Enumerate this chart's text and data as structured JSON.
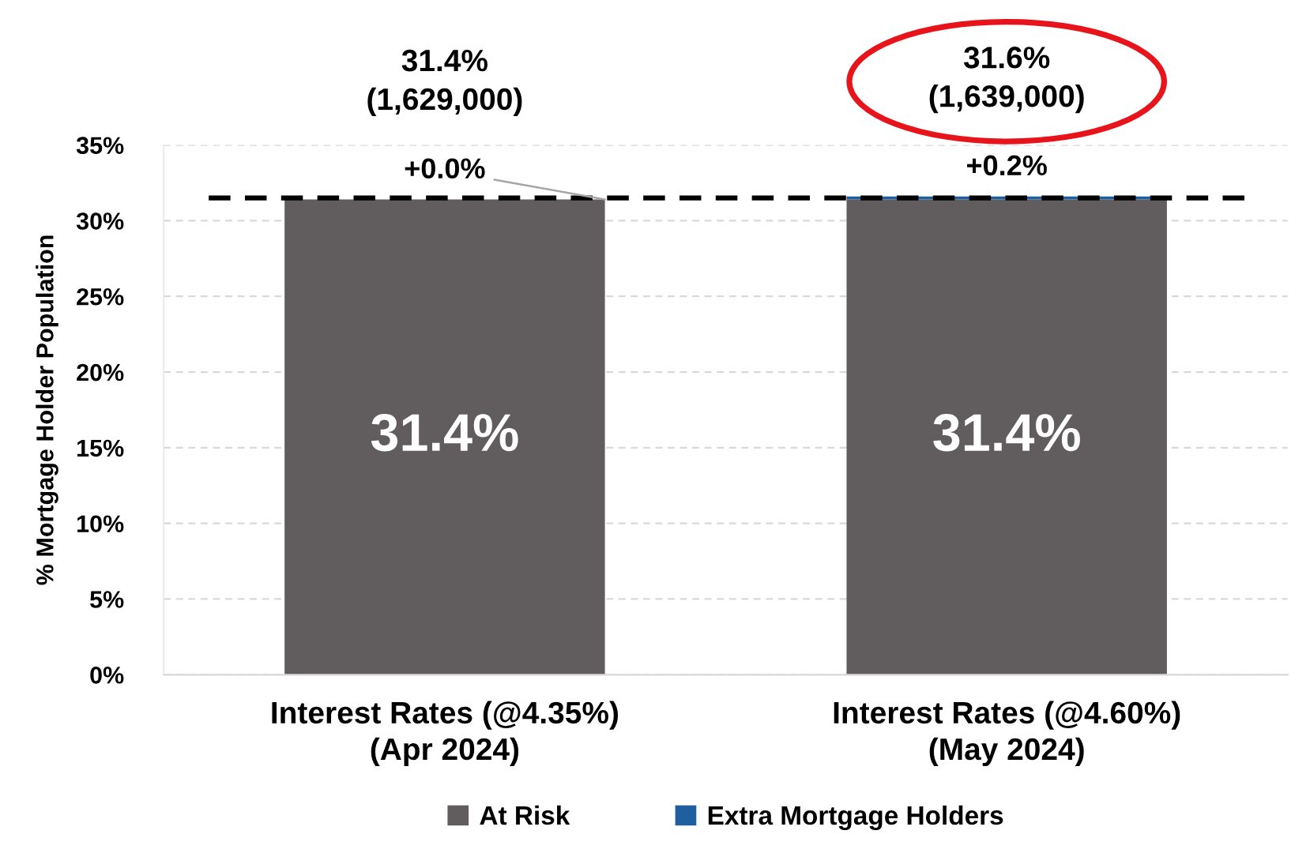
{
  "chart_data": {
    "type": "bar",
    "stacked": true,
    "ylabel": "% Mortgage Holder Population",
    "categories": [
      "Interest Rates (@4.35%)\n(Apr 2024)",
      "Interest Rates (@4.60%)\n(May 2024)"
    ],
    "series": [
      {
        "name": "At Risk",
        "color": "#615d5e",
        "values": [
          31.4,
          31.4
        ],
        "value_labels": [
          "31.4%",
          "31.4%"
        ]
      },
      {
        "name": "Extra Mortgage Holders",
        "color": "#1f5fa0",
        "values": [
          0.0,
          0.2
        ],
        "value_labels": [
          "+0.0%",
          "+0.2%"
        ]
      }
    ],
    "totals": [
      "31.4%\n(1,629,000)",
      "31.6%\n(1,639,000)"
    ],
    "ref_lines": [
      {
        "axis": "y",
        "value": 31.5,
        "color": "#000000",
        "line_style": "dashed"
      }
    ],
    "ylim": [
      0,
      35
    ],
    "yticks": [
      {
        "value": 0,
        "label": "0%"
      },
      {
        "value": 5,
        "label": "5%"
      },
      {
        "value": 10,
        "label": "10%"
      },
      {
        "value": 15,
        "label": "15%"
      },
      {
        "value": 20,
        "label": "20%"
      },
      {
        "value": 25,
        "label": "25%"
      },
      {
        "value": 30,
        "label": "30%"
      },
      {
        "value": 35,
        "label": "35%"
      }
    ],
    "grid": "y",
    "legend": "bottom"
  }
}
